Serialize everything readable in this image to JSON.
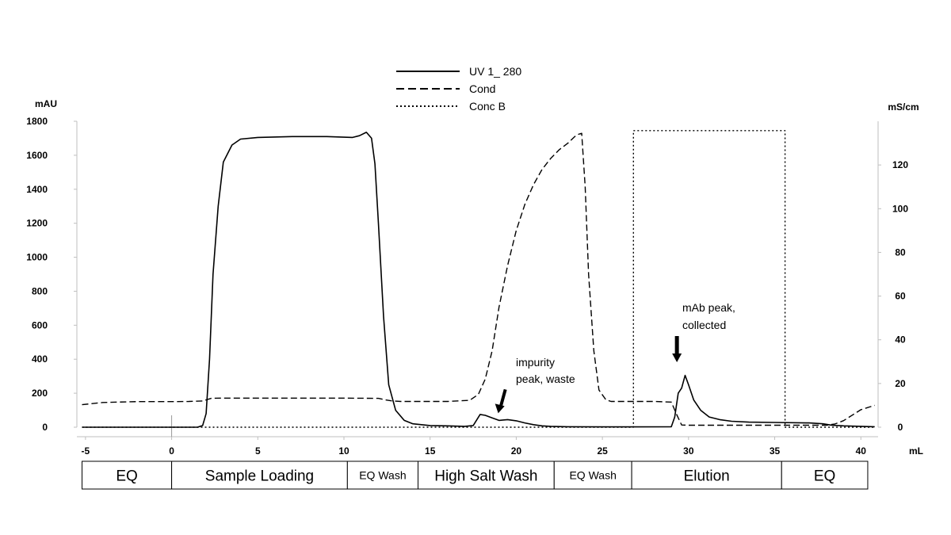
{
  "chart_data": {
    "type": "line",
    "title": "",
    "xlabel": "mL",
    "ylabel_left": "mAU",
    "ylabel_right": "mS/cm",
    "xlim": [
      -5.5,
      41
    ],
    "ylim_left": [
      0,
      1800
    ],
    "ylim_right": [
      0,
      140
    ],
    "x_ticks": [
      "-5",
      "0",
      "5",
      "10",
      "15",
      "20",
      "25",
      "30",
      "35",
      "40"
    ],
    "y_ticks_left": [
      "0",
      "200",
      "400",
      "600",
      "800",
      "1000",
      "1200",
      "1400",
      "1600",
      "1800"
    ],
    "y_ticks_right": [
      "0",
      "20",
      "40",
      "60",
      "80",
      "100",
      "120"
    ],
    "legend": [
      {
        "label": "UV 1_ 280",
        "style": "solid"
      },
      {
        "label": "Cond",
        "style": "dashed"
      },
      {
        "label": "Conc B",
        "style": "dotted"
      }
    ],
    "series": [
      {
        "name": "UV 1_ 280",
        "axis": "left",
        "style": "solid",
        "x": [
          -5.2,
          1.5,
          1.8,
          2.0,
          2.2,
          2.4,
          2.7,
          3.0,
          3.5,
          4.0,
          5.0,
          7.0,
          9.0,
          10.5,
          10.9,
          11.3,
          11.6,
          11.8,
          12.0,
          12.3,
          12.6,
          13.0,
          13.5,
          14.0,
          15.0,
          16.0,
          17.0,
          17.5,
          17.9,
          18.2,
          18.6,
          19.0,
          19.5,
          20.0,
          20.5,
          21.0,
          21.5,
          22.0,
          23.0,
          25.0,
          27.0,
          29.0,
          29.2,
          29.4,
          29.6,
          29.8,
          30.0,
          30.3,
          30.7,
          31.2,
          31.8,
          32.5,
          33.5,
          35.0,
          37.0,
          37.8,
          38.3,
          39.0,
          40.0,
          40.8
        ],
        "y": [
          0,
          0,
          10,
          80,
          400,
          900,
          1300,
          1560,
          1660,
          1695,
          1705,
          1710,
          1710,
          1705,
          1715,
          1735,
          1700,
          1550,
          1200,
          650,
          250,
          100,
          40,
          20,
          10,
          8,
          5,
          10,
          75,
          70,
          55,
          40,
          45,
          38,
          25,
          15,
          8,
          5,
          3,
          2,
          2,
          3,
          60,
          200,
          230,
          305,
          250,
          160,
          100,
          60,
          45,
          35,
          30,
          28,
          25,
          20,
          12,
          8,
          5,
          3
        ]
      },
      {
        "name": "Cond",
        "axis": "right",
        "style": "dashed",
        "x": [
          -5.2,
          -4.0,
          -2.0,
          0.0,
          1.0,
          1.8,
          2.3,
          2.8,
          5.0,
          10.0,
          12.0,
          12.4,
          12.8,
          13.3,
          16.0,
          17.3,
          17.8,
          18.2,
          18.6,
          19.0,
          19.5,
          20.0,
          20.5,
          21.0,
          21.5,
          22.0,
          22.5,
          23.0,
          23.4,
          23.6,
          23.8,
          24.0,
          24.2,
          24.5,
          24.8,
          25.2,
          25.5,
          26.0,
          28.0,
          29.0,
          29.3,
          29.6,
          30.0,
          32.0,
          35.0,
          37.0,
          38.0,
          38.5,
          39.0,
          39.5,
          40.0,
          40.8
        ],
        "y": [
          10.3,
          11.3,
          11.7,
          11.7,
          11.8,
          12.0,
          13.2,
          13.3,
          13.3,
          13.3,
          13.2,
          12.5,
          12.0,
          11.8,
          11.8,
          12.3,
          15.0,
          22.0,
          35.0,
          55.0,
          74.0,
          90.0,
          102.0,
          111.0,
          118.0,
          123.0,
          127.0,
          130.0,
          133.0,
          134.0,
          134.5,
          110.0,
          70.0,
          35.0,
          17.0,
          12.6,
          11.8,
          11.8,
          11.8,
          11.5,
          6.0,
          1.0,
          0.9,
          0.9,
          0.9,
          0.9,
          0.9,
          1.5,
          3.0,
          5.5,
          8.0,
          10.0
        ]
      },
      {
        "name": "Conc B",
        "axis": "left",
        "style": "dotted",
        "x": [
          -5.2,
          26.8,
          26.8,
          35.6,
          35.6,
          40.8
        ],
        "y": [
          0,
          0,
          1745,
          1745,
          0,
          0
        ]
      }
    ],
    "annotations": [
      {
        "lines": [
          "impurity",
          "peak, waste"
        ],
        "x": 19.0,
        "y": 45
      },
      {
        "lines": [
          "mAb peak,",
          "collected"
        ],
        "x": 29.6,
        "y": 380
      }
    ],
    "phases": [
      {
        "label": "EQ",
        "start": -5.2,
        "end": 0
      },
      {
        "label": "Sample Loading",
        "start": 0,
        "end": 10.2
      },
      {
        "label": "EQ Wash",
        "start": 10.2,
        "end": 14.3
      },
      {
        "label": "High Salt Wash",
        "start": 14.3,
        "end": 22.2
      },
      {
        "label": "EQ Wash",
        "start": 22.2,
        "end": 26.7
      },
      {
        "label": "Elution",
        "start": 26.7,
        "end": 35.4
      },
      {
        "label": "EQ",
        "start": 35.4,
        "end": 40.4
      }
    ]
  }
}
